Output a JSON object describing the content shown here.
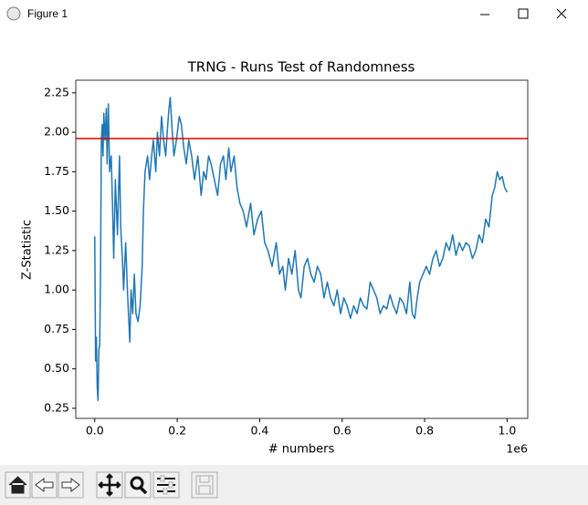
{
  "window": {
    "title": "Figure 1"
  },
  "chart_data": {
    "type": "line",
    "title": "TRNG - Runs Test of Randomness",
    "xlabel": "# numbers",
    "ylabel": "Z-Statistic",
    "xaxis_offset": "1e6",
    "color": "#1f77b4",
    "x": [
      0,
      2000,
      4000,
      6000,
      8000,
      10000,
      12000,
      14000,
      16000,
      18000,
      20000,
      22000,
      25000,
      28000,
      30000,
      33000,
      36000,
      40000,
      43000,
      46000,
      50000,
      55000,
      60000,
      63000,
      67000,
      70000,
      75000,
      80000,
      85000,
      88000,
      92000,
      96000,
      100000,
      105000,
      110000,
      115000,
      118000,
      122000,
      128000,
      133000,
      138000,
      142000,
      148000,
      152000,
      157000,
      162000,
      167000,
      172000,
      177000,
      180000,
      183000,
      188000,
      192000,
      198000,
      205000,
      210000,
      216000,
      222000,
      228000,
      235000,
      242000,
      250000,
      258000,
      264000,
      270000,
      276000,
      282000,
      290000,
      298000,
      305000,
      312000,
      318000,
      325000,
      330000,
      338000,
      345000,
      352000,
      360000,
      368000,
      378000,
      386000,
      395000,
      404000,
      412000,
      420000,
      430000,
      440000,
      448000,
      456000,
      462000,
      470000,
      478000,
      486000,
      494000,
      500000,
      508000,
      516000,
      524000,
      532000,
      540000,
      548000,
      556000,
      564000,
      572000,
      580000,
      588000,
      596000,
      604000,
      612000,
      620000,
      628000,
      636000,
      644000,
      652000,
      660000,
      668000,
      676000,
      684000,
      692000,
      700000,
      708000,
      716000,
      724000,
      732000,
      740000,
      748000,
      756000,
      764000,
      770000,
      776000,
      782000,
      788000,
      796000,
      804000,
      812000,
      820000,
      828000,
      836000,
      844000,
      852000,
      860000,
      868000,
      876000,
      884000,
      892000,
      900000,
      908000,
      916000,
      924000,
      932000,
      940000,
      948000,
      956000,
      964000,
      970000,
      976000,
      982000,
      988000,
      994000,
      1000000
    ],
    "values": [
      1.34,
      0.55,
      0.7,
      0.38,
      0.3,
      0.62,
      0.65,
      1.1,
      1.95,
      2.05,
      1.85,
      2.12,
      1.95,
      2.15,
      1.8,
      2.18,
      1.75,
      1.85,
      1.55,
      1.2,
      1.7,
      1.35,
      1.85,
      1.4,
      1.2,
      1.0,
      1.3,
      0.95,
      0.67,
      1.0,
      0.85,
      1.1,
      0.85,
      0.8,
      0.9,
      1.15,
      1.5,
      1.75,
      1.85,
      1.7,
      1.85,
      1.95,
      1.75,
      2.0,
      1.85,
      2.1,
      1.95,
      1.85,
      2.05,
      2.15,
      2.22,
      2.0,
      1.85,
      1.95,
      2.1,
      2.05,
      1.9,
      1.8,
      1.95,
      1.85,
      1.7,
      1.85,
      1.6,
      1.75,
      1.7,
      1.85,
      1.8,
      1.7,
      1.6,
      1.8,
      1.85,
      1.7,
      1.9,
      1.75,
      1.85,
      1.65,
      1.55,
      1.5,
      1.4,
      1.55,
      1.35,
      1.45,
      1.5,
      1.3,
      1.25,
      1.15,
      1.3,
      1.1,
      1.15,
      1.0,
      1.2,
      1.1,
      1.25,
      1.0,
      0.95,
      1.15,
      1.2,
      1.1,
      1.05,
      1.15,
      1.1,
      0.95,
      1.05,
      0.95,
      0.9,
      1.0,
      0.85,
      0.95,
      0.9,
      0.82,
      0.9,
      0.85,
      0.95,
      0.9,
      0.88,
      1.05,
      1.0,
      0.95,
      0.85,
      0.9,
      0.88,
      0.97,
      0.9,
      0.85,
      0.95,
      0.92,
      0.85,
      1.05,
      0.85,
      0.82,
      0.95,
      1.05,
      1.1,
      1.15,
      1.1,
      1.2,
      1.25,
      1.15,
      1.2,
      1.3,
      1.25,
      1.35,
      1.22,
      1.3,
      1.25,
      1.3,
      1.28,
      1.2,
      1.25,
      1.35,
      1.3,
      1.45,
      1.4,
      1.6,
      1.65,
      1.75,
      1.7,
      1.72,
      1.65,
      1.62
    ],
    "hlines": [
      {
        "value": 1.96,
        "color": "#e00000"
      }
    ],
    "xlim": [
      -46000,
      1050000
    ],
    "ylim": [
      0.186,
      2.33
    ],
    "xticks": [
      {
        "value": 0,
        "label": "0.0"
      },
      {
        "value": 200000,
        "label": "0.2"
      },
      {
        "value": 400000,
        "label": "0.4"
      },
      {
        "value": 600000,
        "label": "0.6"
      },
      {
        "value": 800000,
        "label": "0.8"
      },
      {
        "value": 1000000,
        "label": "1.0"
      }
    ],
    "yticks": [
      0.25,
      {
        "value": 0.5,
        "label": "0.50"
      },
      0.75,
      {
        "value": 1,
        "label": "1.00"
      },
      1.25,
      {
        "value": 1.5,
        "label": "1.50"
      },
      1.75,
      {
        "value": 2,
        "label": "2.00"
      },
      2.25
    ],
    "grid": false
  }
}
